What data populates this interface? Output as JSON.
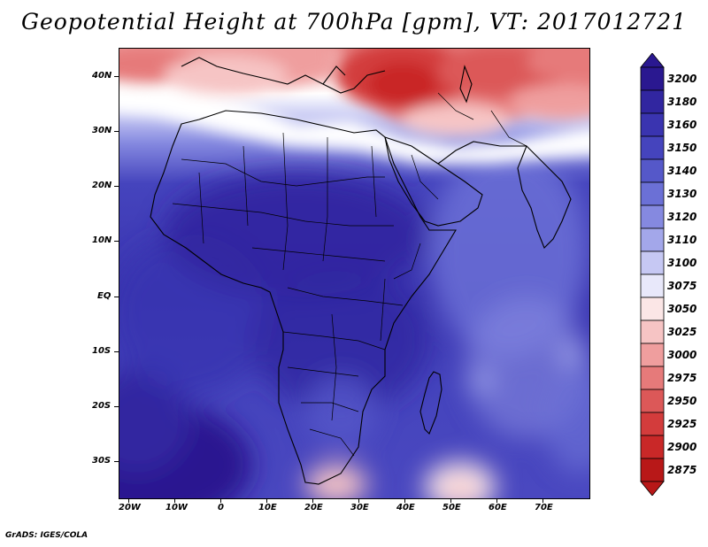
{
  "title": "Geopotential Height at 700hPa [gpm], VT: 2017012721",
  "credit": "GrADS: IGES/COLA",
  "lat_labels": [
    "40N",
    "30N",
    "20N",
    "10N",
    "EQ",
    "10S",
    "20S",
    "30S"
  ],
  "lon_labels": [
    "20W",
    "10W",
    "0",
    "10E",
    "20E",
    "30E",
    "40E",
    "50E",
    "60E",
    "70E"
  ],
  "colorbar": {
    "levels": [
      "3200",
      "3180",
      "3160",
      "3150",
      "3140",
      "3130",
      "3120",
      "3110",
      "3100",
      "3075",
      "3050",
      "3025",
      "3000",
      "2975",
      "2950",
      "2925",
      "2900",
      "2875"
    ],
    "colors": [
      "#2a1890",
      "#3126a0",
      "#3a34b0",
      "#4544bd",
      "#5558c9",
      "#6b70d6",
      "#8589e0",
      "#a3a7ea",
      "#c6c8f3",
      "#e8e8fa",
      "#fbe6e6",
      "#f6c4c4",
      "#ef9e9e",
      "#e67a7a",
      "#dc5858",
      "#d33c3c",
      "#c92828",
      "#b81818"
    ],
    "top_arrow_color": "#2a1890",
    "bottom_arrow_color": "#b81818"
  }
}
